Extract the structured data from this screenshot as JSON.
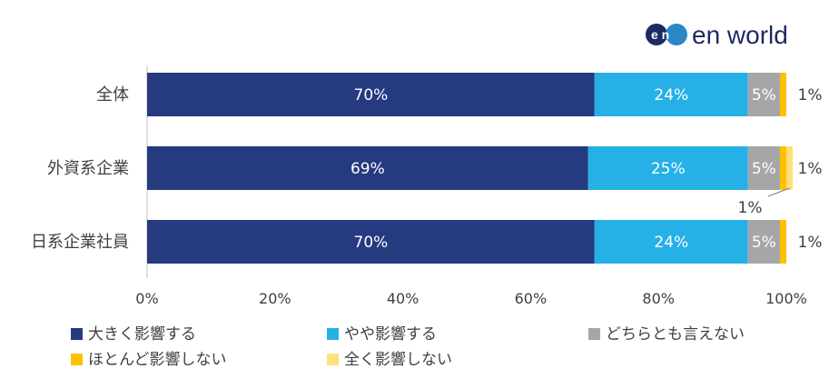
{
  "brand": {
    "logo_mark": "en",
    "logo_text": "en world",
    "colors": {
      "dark": "#1d2a63",
      "accent": "#2a86c6"
    }
  },
  "chart_data": {
    "type": "bar",
    "orientation": "horizontal",
    "stacked": true,
    "categories": [
      "全体",
      "外資系企業",
      "日系企業社員"
    ],
    "series": [
      {
        "name": "大きく影響する",
        "color": "#253a7f",
        "values": [
          70,
          69,
          70
        ]
      },
      {
        "name": "やや影響する",
        "color": "#25b0e6",
        "values": [
          24,
          25,
          24
        ]
      },
      {
        "name": "どちらとも言えない",
        "color": "#a6a6a6",
        "values": [
          5,
          5,
          5
        ]
      },
      {
        "name": "ほとんど影響しない",
        "color": "#ffc000",
        "values": [
          1,
          1,
          1
        ]
      },
      {
        "name": "全く影響しない",
        "color": "#ffe07a",
        "values": [
          0,
          1,
          0
        ]
      }
    ],
    "bar_labels": [
      [
        "70%",
        "24%",
        "5%",
        "1%",
        ""
      ],
      [
        "69%",
        "25%",
        "5%",
        "1%",
        "1%"
      ],
      [
        "70%",
        "24%",
        "5%",
        "1%",
        ""
      ]
    ],
    "xlim": [
      0,
      100
    ],
    "x_ticks": [
      "0%",
      "20%",
      "40%",
      "60%",
      "80%",
      "100%"
    ],
    "x_tick_values": [
      0,
      20,
      40,
      60,
      80,
      100
    ],
    "grid": false,
    "legend_position": "bottom"
  }
}
